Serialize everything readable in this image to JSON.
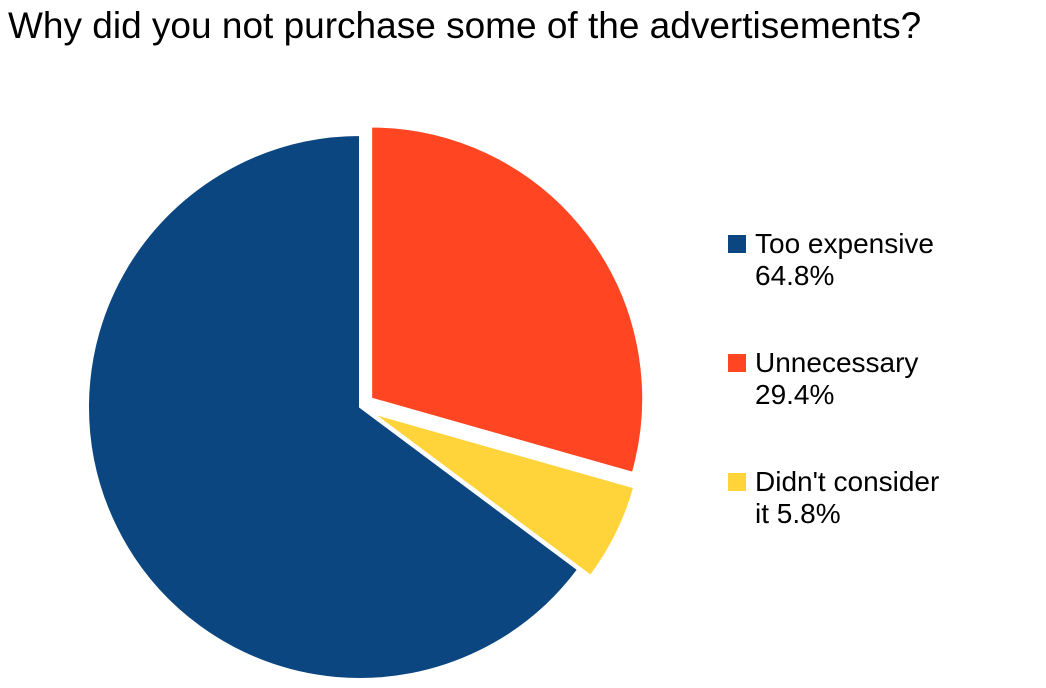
{
  "chart_data": {
    "type": "pie",
    "title": "Why did you not purchase some of the advertisements?",
    "series": [
      {
        "slices": [
          {
            "label": "Too expensive",
            "value": 64.8,
            "color": "#0B4680",
            "exploded": false
          },
          {
            "label": "Unnecessary",
            "value": 29.4,
            "color": "#FF4521",
            "exploded": true
          },
          {
            "label": "Didn't consider it",
            "value": 5.8,
            "color": "#FFD43B",
            "exploded": true
          }
        ]
      }
    ],
    "legend": {
      "position": "right",
      "entries": [
        {
          "line1": "Too expensive",
          "line2": "64.8%"
        },
        {
          "line1": "Unnecessary",
          "line2": "29.4%"
        },
        {
          "line1": "Didn't consider",
          "line2": "it 5.8%"
        }
      ]
    }
  }
}
